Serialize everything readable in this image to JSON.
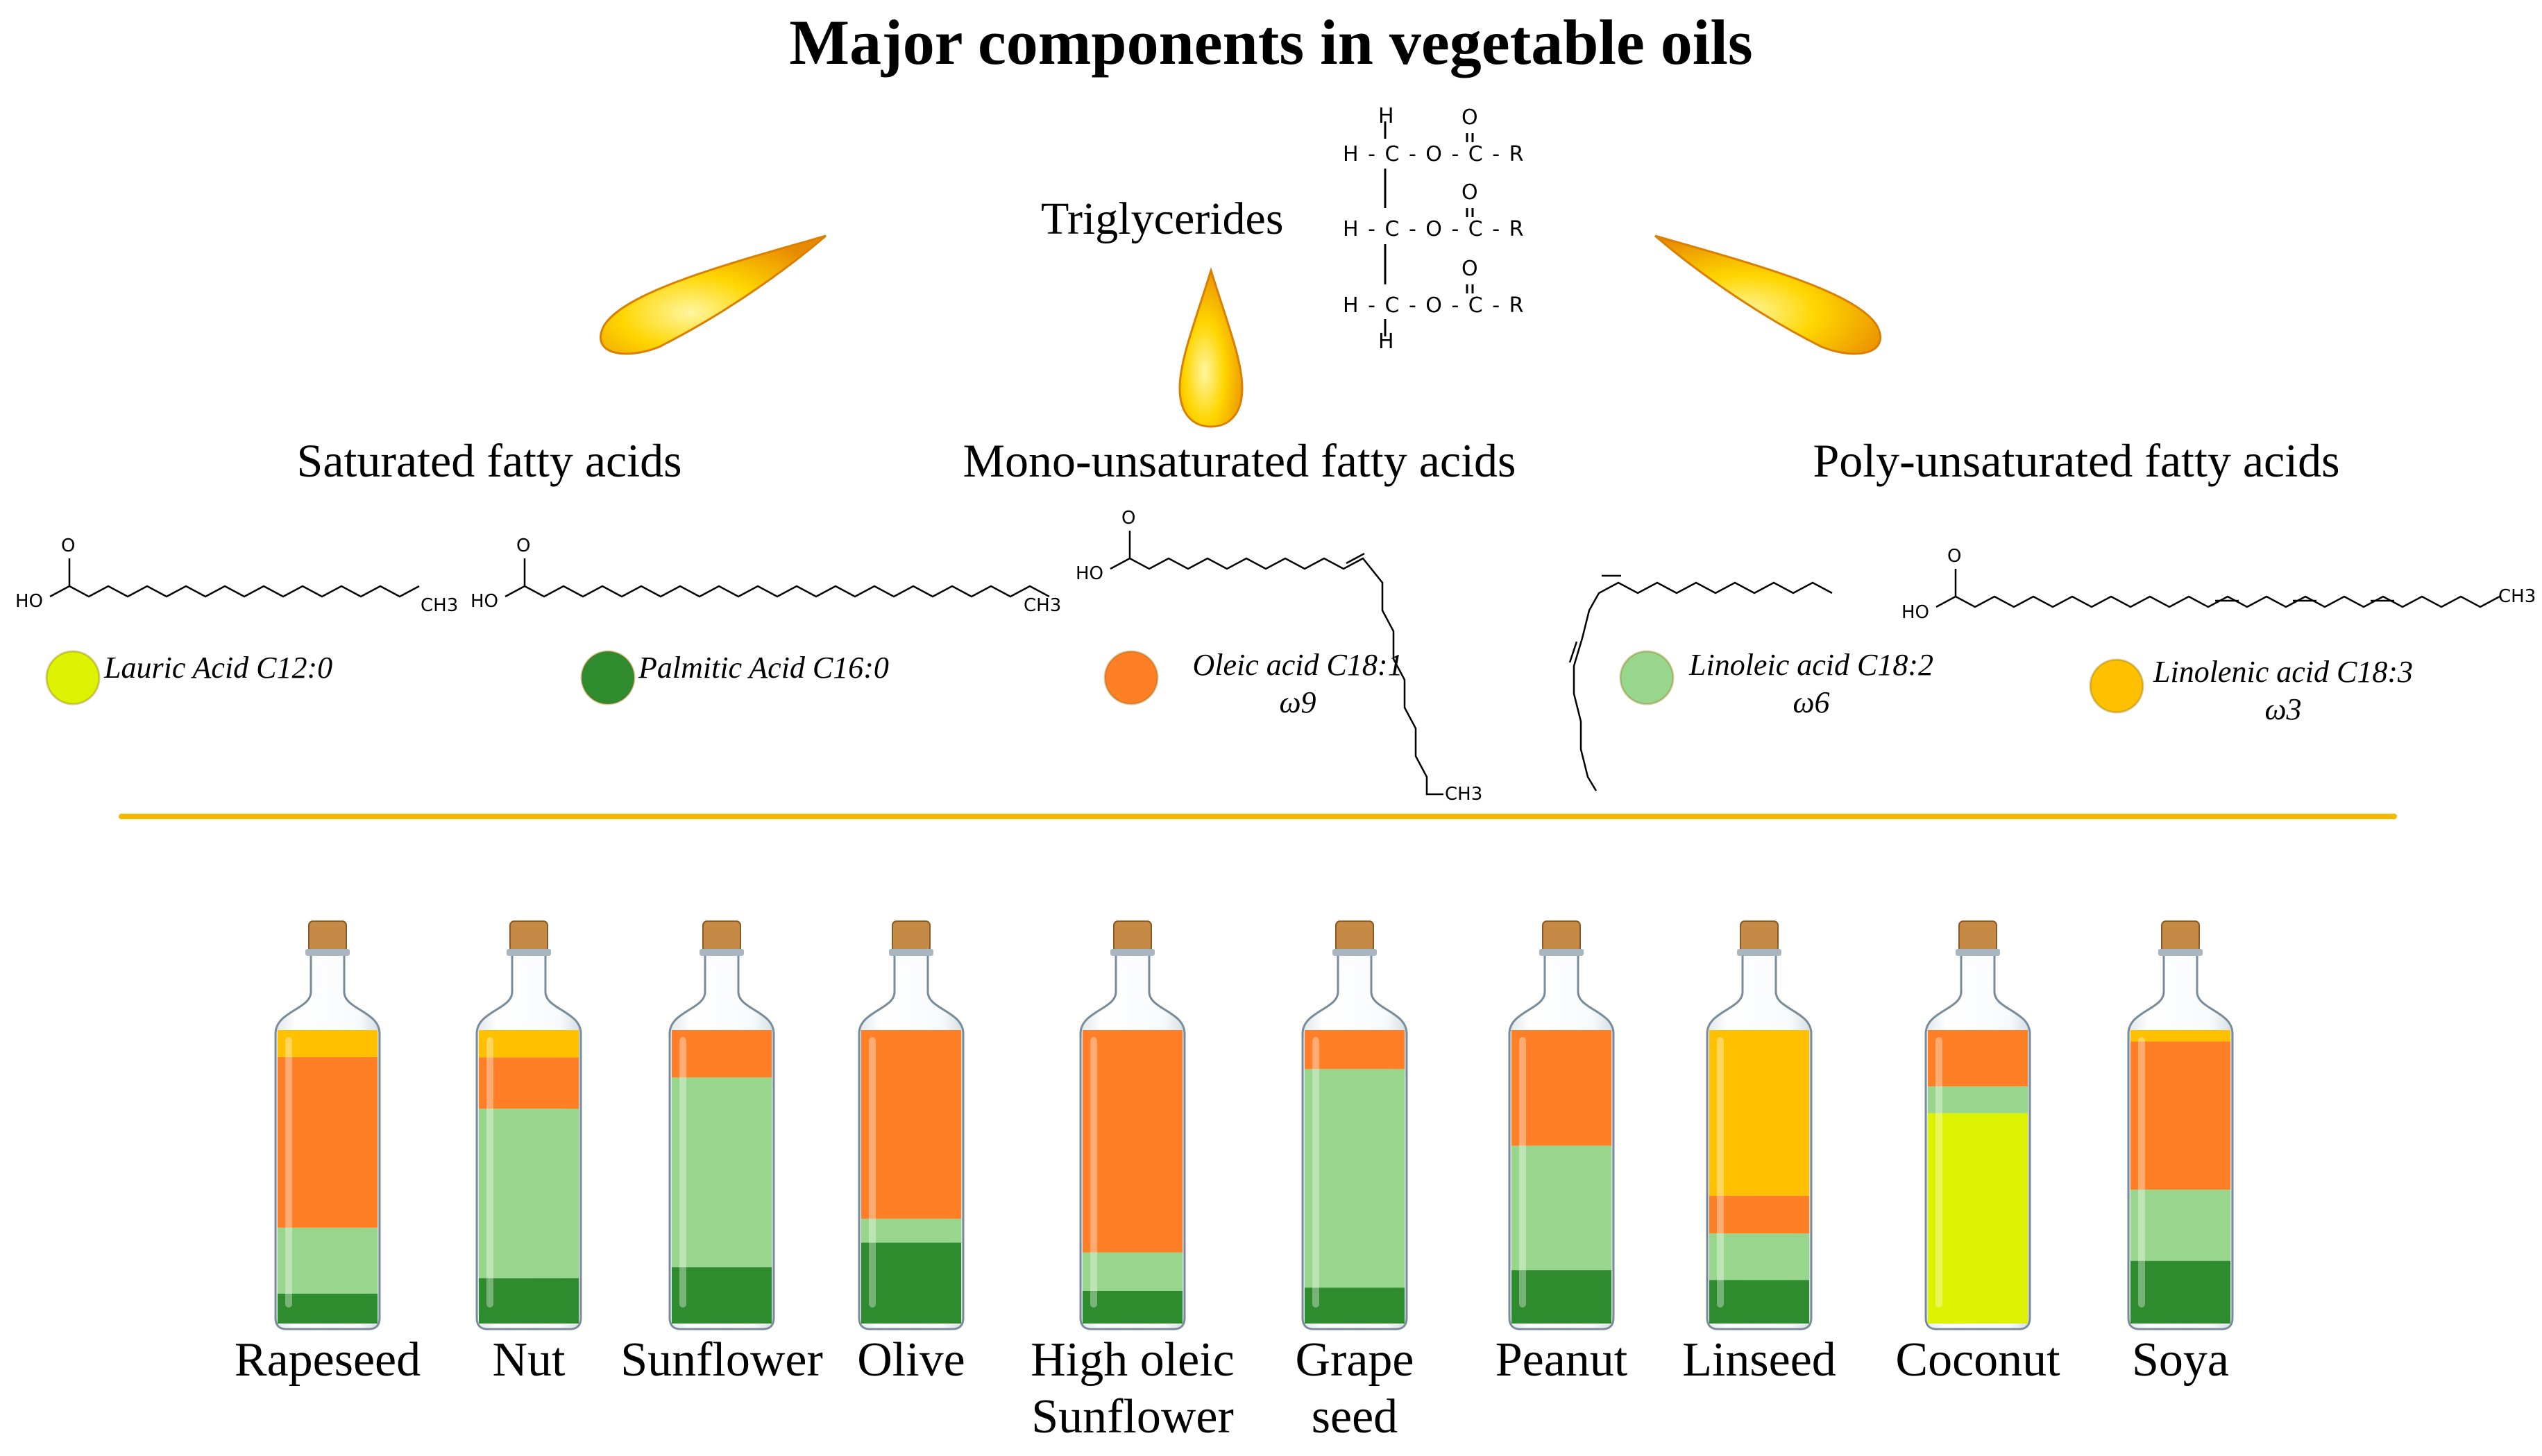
{
  "title": "Major components in vegetable oils",
  "triglycerides": {
    "label": "Triglycerides",
    "structure_rows": [
      "H - C - O - C - R",
      "H - C - O - C - R",
      "H - C - O - C - R"
    ],
    "structure_top_h": "H",
    "structure_bottom_h": "H",
    "carbonyl_o": "O"
  },
  "categories": [
    "Saturated fatty acids",
    "Mono-unsaturated fatty acids",
    "Poly-unsaturated fatty acids"
  ],
  "chem_labels": {
    "ho": "HO",
    "o": "O",
    "ch3": "CH3"
  },
  "acids": [
    {
      "name": "Lauric Acid C12:0",
      "sub": "",
      "color": "#DDF200"
    },
    {
      "name": "Palmitic  Acid C16:0",
      "sub": "",
      "color": "#2E8B2E"
    },
    {
      "name": "Oleic acid C18:1",
      "sub": "ω9",
      "color": "#FF7F27"
    },
    {
      "name": "Linoleic acid  C18:2",
      "sub": "ω6",
      "color": "#98D68D"
    },
    {
      "name": "Linolenic acid  C18:3",
      "sub": "ω3",
      "color": "#FFC000"
    }
  ],
  "oils": [
    {
      "name": "Rapeseed",
      "name2": "",
      "layers": {
        "palmitic": 10,
        "linoleic": 22,
        "oleic": 57,
        "linolenic": 9
      }
    },
    {
      "name": "Nut",
      "name2": "",
      "layers": {
        "palmitic": 15,
        "linoleic": 56,
        "oleic": 17,
        "linolenic": 9
      }
    },
    {
      "name": "Sunflower",
      "name2": "",
      "layers": {
        "palmitic": 19,
        "linoleic": 64,
        "oleic": 16,
        "linolenic": 0
      }
    },
    {
      "name": "Olive",
      "name2": "",
      "layers": {
        "palmitic": 27,
        "linoleic": 8,
        "oleic": 63,
        "linolenic": 0
      }
    },
    {
      "name": "High oleic",
      "name2": "Sunflower",
      "layers": {
        "palmitic": 11,
        "linoleic": 13,
        "oleic": 75,
        "linolenic": 0
      }
    },
    {
      "name": "Grape",
      "name2": "seed",
      "layers": {
        "palmitic": 12,
        "linoleic": 73,
        "oleic": 13,
        "linolenic": 0
      }
    },
    {
      "name": "Peanut",
      "name2": "",
      "layers": {
        "palmitic": 18,
        "linoleic": 42,
        "oleic": 39,
        "linolenic": 0
      }
    },
    {
      "name": "Linseed",
      "name2": "",
      "layers": {
        "palmitic": 15,
        "linoleic": 16,
        "oleic": 13,
        "linolenic": 57
      }
    },
    {
      "name": "Coconut",
      "name2": "",
      "layers": {
        "lauric": 71,
        "linoleic": 9,
        "oleic": 19
      }
    },
    {
      "name": "Soya",
      "name2": "",
      "layers": {
        "palmitic": 22,
        "linoleic": 25,
        "oleic": 52,
        "linolenic": 4
      }
    }
  ],
  "colors": {
    "lauric": "#DDF200",
    "palmitic": "#2E8B2E",
    "oleic": "#FF7F27",
    "linoleic": "#98D68D",
    "linolenic": "#FFC000",
    "divider": "#F5B800",
    "cork": "#C58A45",
    "drop": "#F7C600",
    "glass": "#7A8C99"
  }
}
